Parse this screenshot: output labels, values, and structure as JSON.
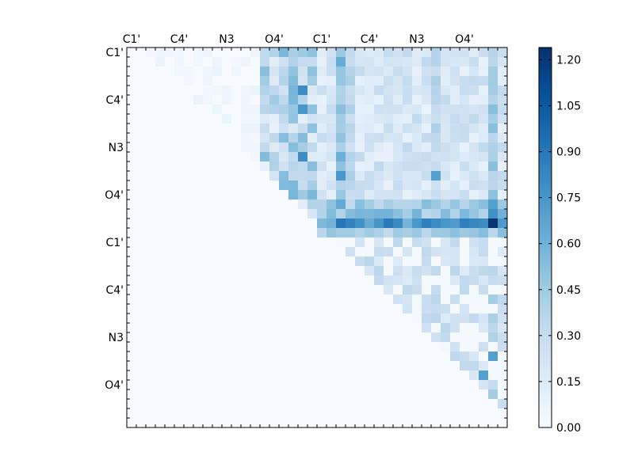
{
  "chart_data": {
    "type": "heatmap",
    "title": "",
    "xlabel": "",
    "ylabel": "",
    "grid_size": 40,
    "xlim": [
      0,
      40
    ],
    "ylim": [
      0,
      40
    ],
    "x_tick_labels": [
      {
        "pos": 0,
        "label": "C1'"
      },
      {
        "pos": 5,
        "label": "C4'"
      },
      {
        "pos": 10,
        "label": "N3"
      },
      {
        "pos": 15,
        "label": "O4'"
      },
      {
        "pos": 20,
        "label": "C1'"
      },
      {
        "pos": 25,
        "label": "C4'"
      },
      {
        "pos": 30,
        "label": "N3"
      },
      {
        "pos": 35,
        "label": "O4'"
      }
    ],
    "y_tick_labels": [
      {
        "pos": 0,
        "label": "C1'"
      },
      {
        "pos": 5,
        "label": "C4'"
      },
      {
        "pos": 10,
        "label": "N3"
      },
      {
        "pos": 15,
        "label": "O4'"
      },
      {
        "pos": 20,
        "label": "C1'"
      },
      {
        "pos": 25,
        "label": "C4'"
      },
      {
        "pos": 30,
        "label": "N3"
      },
      {
        "pos": 35,
        "label": "O4'"
      }
    ],
    "colormap": "Blues",
    "colorbar": {
      "min": 0.0,
      "max": 1.24,
      "ticks": [
        0.0,
        0.15,
        0.3,
        0.45,
        0.6,
        0.75,
        0.9,
        1.05,
        1.2
      ],
      "tick_labels": [
        "0.00",
        "0.15",
        "0.30",
        "0.45",
        "0.60",
        "0.75",
        "0.90",
        "1.05",
        "1.20"
      ]
    },
    "strong_columns": [
      {
        "col": 22,
        "value": 0.55
      },
      {
        "col": 23,
        "value": 0.35
      },
      {
        "col": 32,
        "value": 0.35
      },
      {
        "col": 38,
        "value": 0.45
      }
    ],
    "strong_rows": [
      {
        "row": 16,
        "value": 0.45
      },
      {
        "row": 17,
        "value": 0.5
      },
      {
        "row": 18,
        "value": 0.75
      },
      {
        "row": 19,
        "value": 0.45
      }
    ],
    "hot_cells": [
      {
        "row": 18,
        "col": 38,
        "value": 1.22
      },
      {
        "row": 18,
        "col": 22,
        "value": 0.9
      },
      {
        "row": 18,
        "col": 23,
        "value": 0.85
      },
      {
        "row": 18,
        "col": 37,
        "value": 0.8
      },
      {
        "row": 4,
        "col": 18,
        "value": 0.8
      },
      {
        "row": 6,
        "col": 18,
        "value": 0.75
      },
      {
        "row": 11,
        "col": 18,
        "value": 0.8
      },
      {
        "row": 13,
        "col": 22,
        "value": 0.75
      },
      {
        "row": 17,
        "col": 38,
        "value": 0.78
      },
      {
        "row": 16,
        "col": 38,
        "value": 0.7
      },
      {
        "row": 13,
        "col": 32,
        "value": 0.7
      },
      {
        "row": 32,
        "col": 38,
        "value": 0.7
      },
      {
        "row": 34,
        "col": 37,
        "value": 0.7
      }
    ]
  }
}
